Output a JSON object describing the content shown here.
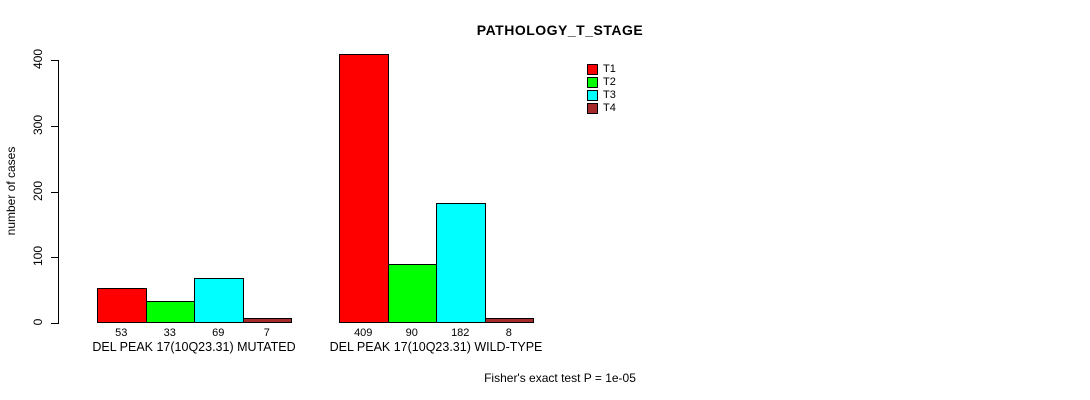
{
  "title": "PATHOLOGY_T_STAGE",
  "chart_data": {
    "type": "bar",
    "title": "PATHOLOGY_T_STAGE",
    "xlabel": "",
    "ylabel": "number of cases",
    "ylim": [
      0,
      409
    ],
    "yticks": [
      0,
      100,
      200,
      300,
      400
    ],
    "grid": false,
    "legend_position": "top-right",
    "categories": [
      "DEL PEAK 17(10Q23.31) MUTATED",
      "DEL PEAK 17(10Q23.31) WILD-TYPE"
    ],
    "series": [
      {
        "name": "T1",
        "color": "#FF0000",
        "values": [
          53,
          409
        ]
      },
      {
        "name": "T2",
        "color": "#00FF00",
        "values": [
          33,
          90
        ]
      },
      {
        "name": "T3",
        "color": "#00FFFF",
        "values": [
          69,
          182
        ]
      },
      {
        "name": "T4",
        "color": "#A52A2A",
        "values": [
          7,
          8
        ]
      }
    ],
    "bar_value_labels": [
      [
        53,
        33,
        69,
        7
      ],
      [
        409,
        90,
        182,
        8
      ]
    ],
    "annotation": "Fisher's exact test P = 1e-05"
  },
  "colors": {
    "background": "#FFFFFF",
    "text": "#000000",
    "axis": "#000000"
  }
}
